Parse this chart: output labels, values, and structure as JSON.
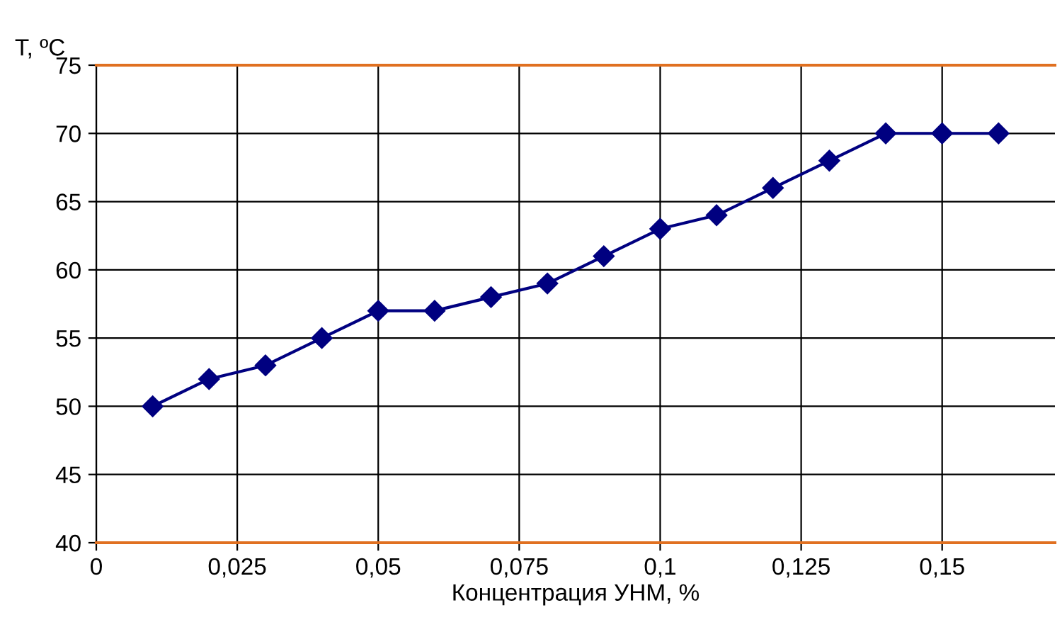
{
  "chart_data": {
    "type": "line",
    "ylabel": "T, ºC",
    "xlabel": "Концентрация УНМ, %",
    "x": [
      0.01,
      0.02,
      0.03,
      0.04,
      0.05,
      0.06,
      0.07,
      0.08,
      0.09,
      0.1,
      0.11,
      0.12,
      0.13,
      0.14,
      0.15,
      0.16
    ],
    "series": [
      {
        "color": "#000080",
        "values": [
          50,
          52,
          53,
          55,
          57,
          57,
          58,
          59,
          61,
          63,
          64,
          66,
          68,
          70,
          70,
          70
        ]
      }
    ],
    "xlim": [
      0,
      0.17
    ],
    "ylim": [
      40,
      75
    ],
    "xticks": [
      0,
      {
        "value": 0.025,
        "label": "0,025"
      },
      {
        "value": 0.05,
        "label": "0,05"
      },
      {
        "value": 0.075,
        "label": "0,075"
      },
      {
        "value": 0.1,
        "label": "0,1"
      },
      {
        "value": 0.125,
        "label": "0,125"
      },
      {
        "value": 0.15,
        "label": "0,15"
      }
    ],
    "yticks": [
      40,
      45,
      50,
      55,
      60,
      65,
      70,
      75
    ],
    "grid": true,
    "marker": "diamond",
    "line_style": "solid",
    "legend": false
  }
}
